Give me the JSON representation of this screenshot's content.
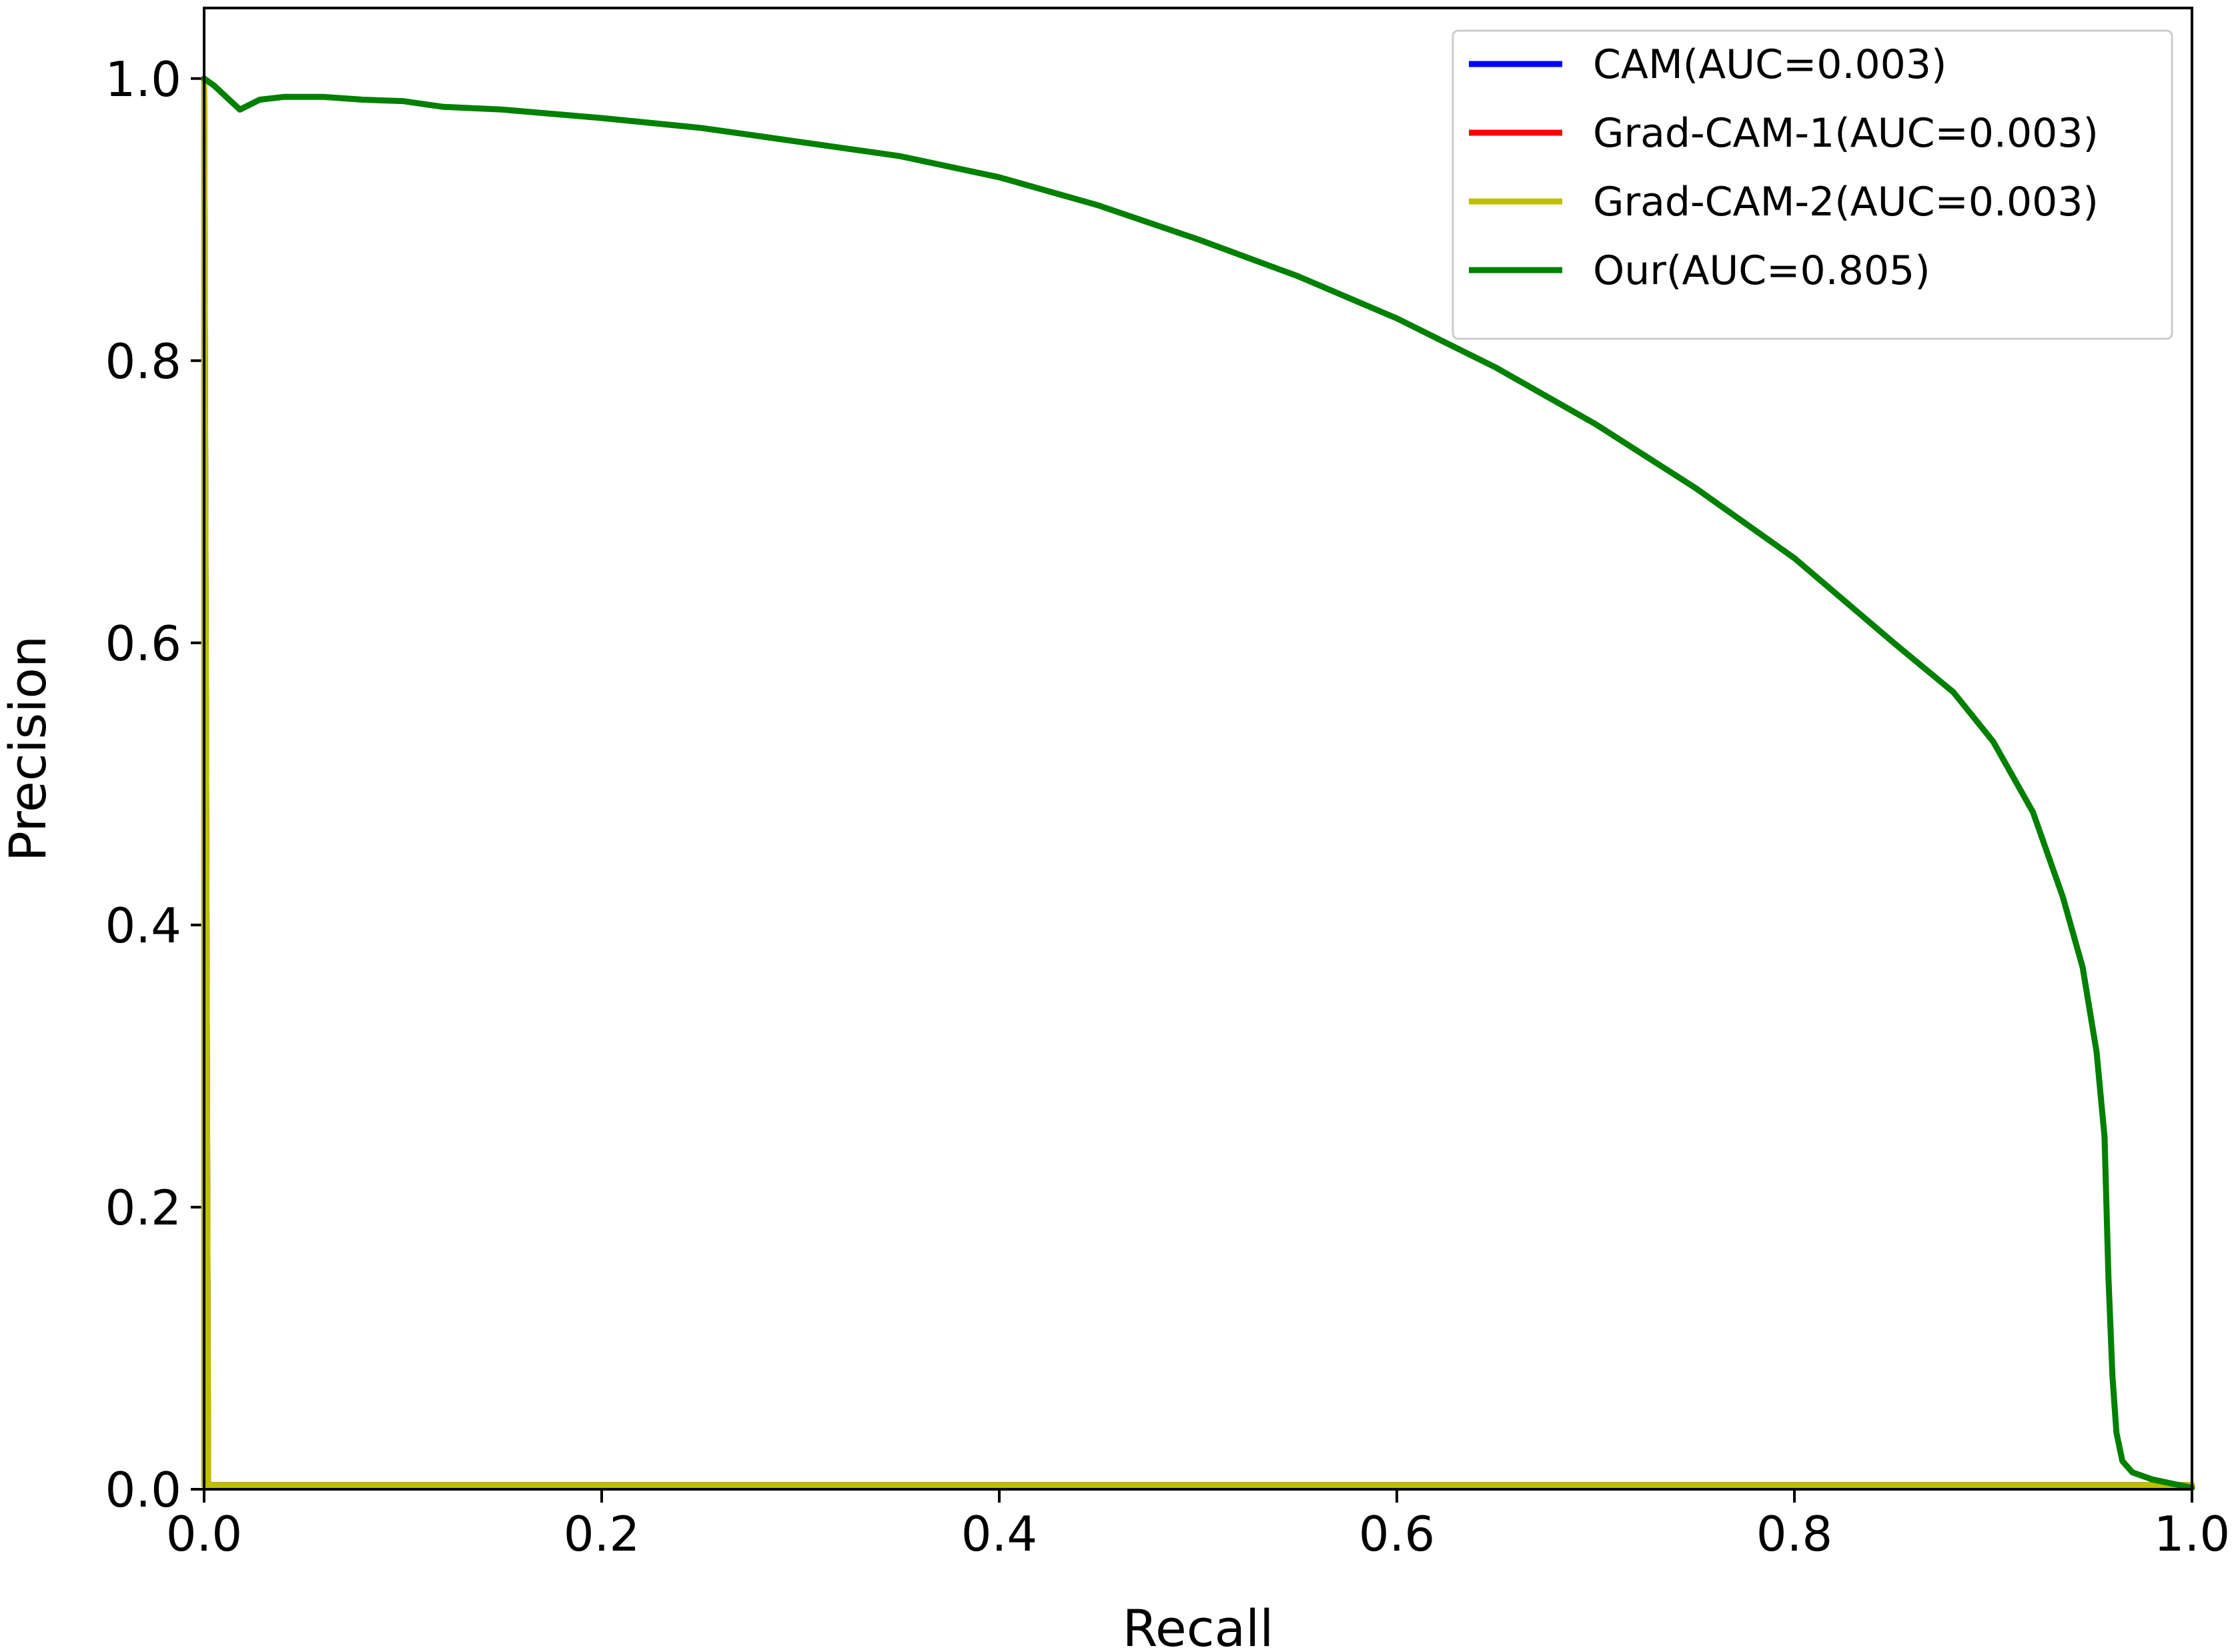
{
  "chart_data": {
    "type": "line",
    "title": "",
    "xlabel": "Recall",
    "ylabel": "Precision",
    "xlim": [
      0.0,
      1.0
    ],
    "ylim": [
      0.0,
      1.05
    ],
    "xticks": [
      {
        "value": 0.0,
        "label": "0.0"
      },
      {
        "value": 0.2,
        "label": "0.2"
      },
      {
        "value": 0.4,
        "label": "0.4"
      },
      {
        "value": 0.6,
        "label": "0.6"
      },
      {
        "value": 0.8,
        "label": "0.8"
      },
      {
        "value": 1.0,
        "label": "1.0"
      }
    ],
    "yticks": [
      {
        "value": 0.0,
        "label": "0.0"
      },
      {
        "value": 0.2,
        "label": "0.2"
      },
      {
        "value": 0.4,
        "label": "0.4"
      },
      {
        "value": 0.6,
        "label": "0.6"
      },
      {
        "value": 0.8,
        "label": "0.8"
      },
      {
        "value": 1.0,
        "label": "1.0"
      }
    ],
    "grid": false,
    "legend_position": "top-right",
    "series": [
      {
        "name": "CAM(AUC=0.003)",
        "color": "#0000ff",
        "x": [
          0.0,
          0.0,
          0.002,
          1.0
        ],
        "y": [
          0.003,
          1.0,
          0.003,
          0.003
        ]
      },
      {
        "name": "Grad-CAM-1(AUC=0.003)",
        "color": "#ff0000",
        "x": [
          0.0,
          0.0,
          0.002,
          1.0
        ],
        "y": [
          0.003,
          1.0,
          0.003,
          0.003
        ]
      },
      {
        "name": "Grad-CAM-2(AUC=0.003)",
        "color": "#bfbf00",
        "x": [
          0.0,
          0.0,
          0.002,
          1.0
        ],
        "y": [
          0.003,
          1.0,
          0.003,
          0.003
        ]
      },
      {
        "name": "Our(AUC=0.805)",
        "color": "#008000",
        "x": [
          0.0,
          0.005,
          0.018,
          0.028,
          0.04,
          0.06,
          0.08,
          0.1,
          0.12,
          0.15,
          0.2,
          0.25,
          0.3,
          0.35,
          0.4,
          0.45,
          0.5,
          0.55,
          0.6,
          0.65,
          0.7,
          0.75,
          0.8,
          0.85,
          0.88,
          0.9,
          0.92,
          0.935,
          0.945,
          0.952,
          0.956,
          0.958,
          0.96,
          0.962,
          0.965,
          0.97,
          0.98,
          0.99,
          1.0
        ],
        "y": [
          1.0,
          0.995,
          0.978,
          0.985,
          0.987,
          0.987,
          0.985,
          0.984,
          0.98,
          0.978,
          0.972,
          0.965,
          0.955,
          0.945,
          0.93,
          0.91,
          0.886,
          0.86,
          0.83,
          0.795,
          0.755,
          0.71,
          0.66,
          0.6,
          0.565,
          0.53,
          0.48,
          0.42,
          0.37,
          0.31,
          0.25,
          0.15,
          0.08,
          0.04,
          0.02,
          0.012,
          0.007,
          0.004,
          0.001
        ]
      }
    ]
  }
}
